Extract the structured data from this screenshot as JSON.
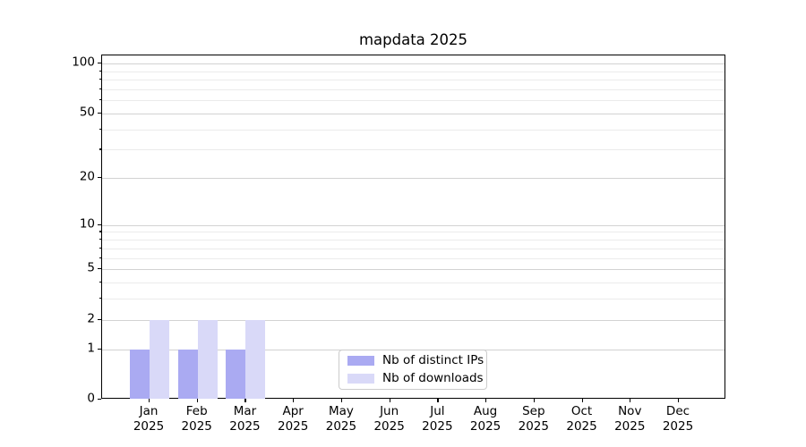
{
  "chart_data": {
    "type": "bar",
    "title": "mapdata 2025",
    "xlabel": "",
    "ylabel": "",
    "year": "2025",
    "categories": [
      "Jan",
      "Feb",
      "Mar",
      "Apr",
      "May",
      "Jun",
      "Jul",
      "Aug",
      "Sep",
      "Oct",
      "Nov",
      "Dec"
    ],
    "series": [
      {
        "name": "Nb of distinct IPs",
        "color": "#aaaaf2",
        "values": [
          1,
          1,
          1,
          0,
          0,
          0,
          0,
          0,
          0,
          0,
          0,
          0
        ]
      },
      {
        "name": "Nb of downloads",
        "color": "#d9d9f8",
        "values": [
          2,
          2,
          2,
          0,
          0,
          0,
          0,
          0,
          0,
          0,
          0,
          0
        ]
      }
    ],
    "y_scale": "log1p",
    "y_axis_top": 112,
    "y_major_ticks": [
      0,
      1,
      2,
      5,
      10,
      20,
      50,
      100
    ],
    "y_minor_ticks": [
      3,
      4,
      6,
      7,
      8,
      9,
      30,
      40,
      60,
      70,
      80,
      90
    ],
    "grid": "on",
    "legend_position": "lower center",
    "colors": {
      "major_grid": "#d2d2d2",
      "minor_grid": "#ebebeb",
      "spine": "#000000",
      "text": "#000000",
      "legend_border": "#cccccc",
      "background": "#ffffff"
    }
  }
}
